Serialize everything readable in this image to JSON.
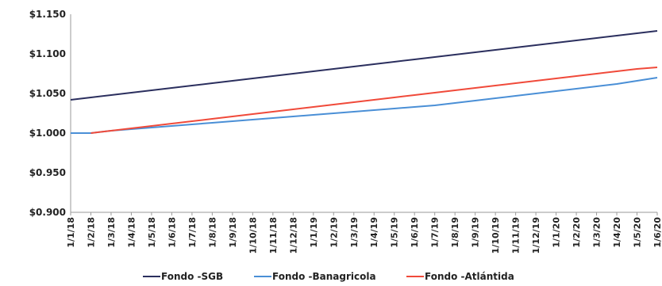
{
  "chart_data": {
    "type": "line",
    "title": "",
    "xlabel": "",
    "ylabel": "",
    "x": [
      "1/1/18",
      "1/2/18",
      "1/3/18",
      "1/4/18",
      "1/5/18",
      "1/6/18",
      "1/7/18",
      "1/8/18",
      "1/9/18",
      "1/10/18",
      "1/11/18",
      "1/12/18",
      "1/1/19",
      "1/2/19",
      "1/3/19",
      "1/4/19",
      "1/5/19",
      "1/6/19",
      "1/7/19",
      "1/8/19",
      "1/9/19",
      "1/10/19",
      "1/11/19",
      "1/12/19",
      "1/1/20",
      "1/2/20",
      "1/3/20",
      "1/4/20",
      "1/5/20",
      "1/6/20"
    ],
    "y_ticks": [
      "$0.900",
      "$0.950",
      "$1.000",
      "$1.050",
      "$1.100",
      "$1.150"
    ],
    "ylim": [
      0.9,
      1.15
    ],
    "grid": false,
    "legend_position": "bottom",
    "series": [
      {
        "name": "Fondo -SGB",
        "color": "#2b2f5e",
        "values": [
          1.042,
          1.045,
          1.048,
          1.051,
          1.054,
          1.057,
          1.06,
          1.063,
          1.066,
          1.069,
          1.072,
          1.075,
          1.078,
          1.081,
          1.084,
          1.087,
          1.09,
          1.093,
          1.096,
          1.099,
          1.102,
          1.105,
          1.108,
          1.111,
          1.114,
          1.117,
          1.12,
          1.123,
          1.126,
          1.129
        ]
      },
      {
        "name": "Fondo -Banagricola",
        "color": "#4a8fd6",
        "values": [
          1.0,
          1.0,
          1.003,
          1.005,
          1.007,
          1.009,
          1.011,
          1.013,
          1.015,
          1.017,
          1.019,
          1.021,
          1.023,
          1.025,
          1.027,
          1.029,
          1.031,
          1.033,
          1.035,
          1.038,
          1.041,
          1.044,
          1.047,
          1.05,
          1.053,
          1.056,
          1.059,
          1.062,
          1.066,
          1.07
        ]
      },
      {
        "name": "Fondo -Atlántida",
        "color": "#f04a3a",
        "values": [
          null,
          1.0,
          1.003,
          1.006,
          1.009,
          1.012,
          1.015,
          1.018,
          1.021,
          1.024,
          1.027,
          1.03,
          1.033,
          1.036,
          1.039,
          1.042,
          1.045,
          1.048,
          1.051,
          1.054,
          1.057,
          1.06,
          1.063,
          1.066,
          1.069,
          1.072,
          1.075,
          1.078,
          1.081,
          1.083
        ]
      }
    ]
  }
}
